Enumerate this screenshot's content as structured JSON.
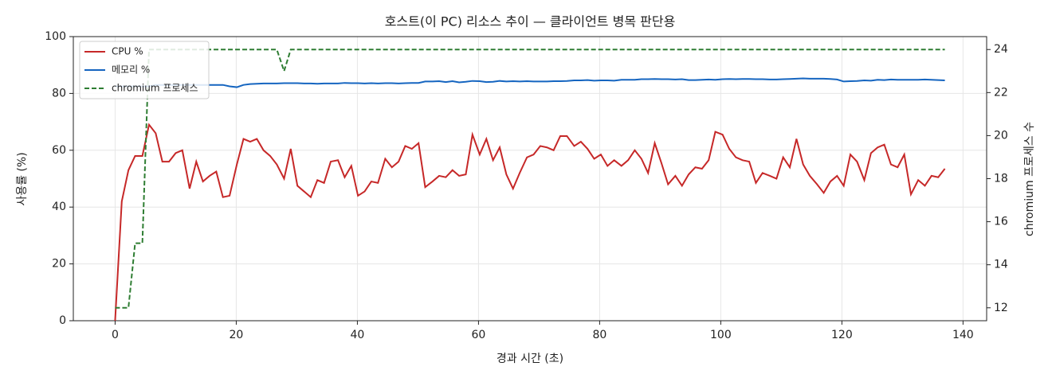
{
  "chart_data": {
    "type": "line",
    "title": "호스트(이 PC) 리소스 추이 — 클라이언트 병목 판단용",
    "x_label": "경과 시간 (초)",
    "y_label": "사용률 (%)",
    "y2_label": "chromium 프로세스 수",
    "x": [
      0,
      1.1,
      2.2,
      3.3,
      4.5,
      5.6,
      6.7,
      7.8,
      8.9,
      10.0,
      11.1,
      12.3,
      13.4,
      14.5,
      15.6,
      16.7,
      17.8,
      18.9,
      20.1,
      21.2,
      22.3,
      23.4,
      24.5,
      25.6,
      26.7,
      27.9,
      29.0,
      30.1,
      31.2,
      32.3,
      33.4,
      34.5,
      35.6,
      36.8,
      37.9,
      39.0,
      40.1,
      41.2,
      42.3,
      43.4,
      44.6,
      45.7,
      46.8,
      47.9,
      49.0,
      50.1,
      51.2,
      52.4,
      53.5,
      54.6,
      55.7,
      56.8,
      57.9,
      59.0,
      60.2,
      61.3,
      62.4,
      63.5,
      64.6,
      65.7,
      66.8,
      68.0,
      69.1,
      70.2,
      71.3,
      72.4,
      73.5,
      74.6,
      75.8,
      76.9,
      78.0,
      79.1,
      80.2,
      81.3,
      82.4,
      83.6,
      84.7,
      85.8,
      86.9,
      88.0,
      89.1,
      90.2,
      91.3,
      92.5,
      93.6,
      94.7,
      95.8,
      96.9,
      98.0,
      99.1,
      100.3,
      101.4,
      102.5,
      103.6,
      104.7,
      105.8,
      106.9,
      108.1,
      109.2,
      110.3,
      111.4,
      112.5,
      113.6,
      114.7,
      115.9,
      117.0,
      118.1,
      119.2,
      120.3,
      121.4,
      122.5,
      123.7,
      124.8,
      125.9,
      127.0,
      128.1,
      129.2,
      130.3,
      131.4,
      132.6,
      133.7,
      134.8,
      135.9,
      137.0
    ],
    "series": [
      {
        "name": "CPU %",
        "color": "#c62828",
        "axis": "y",
        "dashed": false,
        "values": [
          0,
          42,
          53,
          58,
          58,
          69,
          66,
          56,
          56,
          59,
          60,
          46.5,
          56,
          49,
          51,
          52.5,
          43.5,
          44,
          55,
          64,
          63,
          64,
          60,
          58,
          55,
          50,
          60.5,
          47.5,
          45.5,
          43.5,
          49.5,
          48.5,
          56,
          56.5,
          50.5,
          54.5,
          44,
          45.5,
          49,
          48.5,
          57,
          54,
          56,
          61.5,
          60.5,
          62.5,
          47,
          49,
          51,
          50.5,
          53,
          51,
          51.5,
          65.5,
          58.5,
          64,
          56.5,
          61,
          51.5,
          46.5,
          52,
          57.5,
          58.5,
          61.5,
          61,
          60,
          65,
          65,
          61.5,
          63,
          60.5,
          57,
          58.5,
          54.5,
          56.5,
          54.5,
          56.5,
          60,
          57,
          52,
          62.5,
          55.5,
          48,
          51,
          47.5,
          51.5,
          54,
          53.5,
          56.5,
          66.5,
          65.5,
          60.5,
          57.5,
          56.5,
          56,
          48.5,
          52,
          51,
          50,
          57.5,
          54,
          64,
          55,
          51,
          48,
          45,
          49,
          51,
          47.5,
          58.5,
          56,
          49.5,
          59,
          61,
          62,
          55,
          54,
          58.5,
          44.5,
          49.5,
          47.5,
          51,
          50.5,
          53.5
        ]
      },
      {
        "name": "메모리 %",
        "color": "#1565c0",
        "axis": "y",
        "dashed": false,
        "values": [
          82.5,
          82.5,
          82.5,
          82.5,
          82.5,
          82.5,
          83,
          83,
          83,
          83,
          83,
          83,
          83,
          83,
          83,
          83,
          83,
          82.5,
          82.2,
          83,
          83.3,
          83.4,
          83.5,
          83.5,
          83.5,
          83.6,
          83.6,
          83.6,
          83.5,
          83.5,
          83.4,
          83.5,
          83.5,
          83.5,
          83.7,
          83.6,
          83.6,
          83.5,
          83.6,
          83.5,
          83.6,
          83.6,
          83.5,
          83.6,
          83.7,
          83.7,
          84.2,
          84.2,
          84.3,
          84,
          84.3,
          83.9,
          84.1,
          84.4,
          84.3,
          84,
          84.1,
          84.4,
          84.2,
          84.3,
          84.2,
          84.3,
          84.2,
          84.2,
          84.2,
          84.3,
          84.3,
          84.4,
          84.6,
          84.6,
          84.7,
          84.5,
          84.6,
          84.6,
          84.5,
          84.8,
          84.8,
          84.8,
          85,
          85,
          85.1,
          85,
          85,
          84.9,
          85,
          84.7,
          84.7,
          84.8,
          84.9,
          84.8,
          85,
          85.1,
          85,
          85.1,
          85.1,
          85,
          85,
          84.9,
          84.9,
          85,
          85.1,
          85.2,
          85.3,
          85.2,
          85.2,
          85.2,
          85.1,
          84.9,
          84.2,
          84.3,
          84.4,
          84.6,
          84.5,
          84.8,
          84.7,
          84.9,
          84.8,
          84.8,
          84.8,
          84.8,
          84.9,
          84.8,
          84.7,
          84.6
        ]
      },
      {
        "name": "chromium 프로세스",
        "color": "#2e7d32",
        "axis": "y2",
        "dashed": true,
        "values": [
          12,
          12,
          12,
          15,
          15,
          24,
          24,
          24,
          24,
          24,
          24,
          24,
          24,
          24,
          24,
          24,
          24,
          24,
          24,
          24,
          24,
          24,
          24,
          24,
          24,
          23,
          24,
          24,
          24,
          24,
          24,
          24,
          24,
          24,
          24,
          24,
          24,
          24,
          24,
          24,
          24,
          24,
          24,
          24,
          24,
          24,
          24,
          24,
          24,
          24,
          24,
          24,
          24,
          24,
          24,
          24,
          24,
          24,
          24,
          24,
          24,
          24,
          24,
          24,
          24,
          24,
          24,
          24,
          24,
          24,
          24,
          24,
          24,
          24,
          24,
          24,
          24,
          24,
          24,
          24,
          24,
          24,
          24,
          24,
          24,
          24,
          24,
          24,
          24,
          24,
          24,
          24,
          24,
          24,
          24,
          24,
          24,
          24,
          24,
          24,
          24,
          24,
          24,
          24,
          24,
          24,
          24,
          24,
          24,
          24,
          24,
          24,
          24,
          24,
          24,
          24,
          24,
          24,
          24,
          24,
          24,
          24,
          24,
          24
        ]
      }
    ],
    "xlim": [
      -6.9,
      143.9
    ],
    "xticks": [
      0,
      20,
      40,
      60,
      80,
      100,
      120,
      140
    ],
    "ylim": [
      0,
      100
    ],
    "yticks": [
      0,
      20,
      40,
      60,
      80,
      100
    ],
    "y2lim": [
      11.4,
      24.6
    ],
    "y2ticks": [
      12,
      14,
      16,
      18,
      20,
      22,
      24
    ],
    "grid": true,
    "legend": "upper-left"
  }
}
